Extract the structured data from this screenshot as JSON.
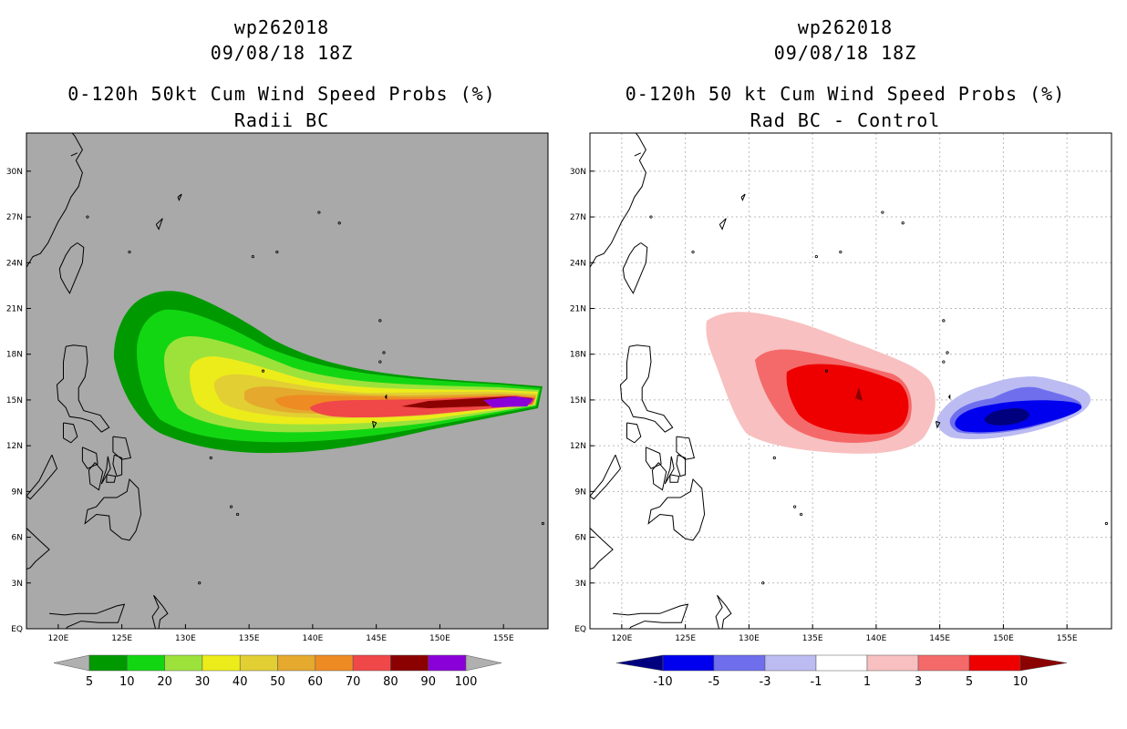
{
  "left": {
    "storm_id": "wp262018",
    "datetime": "09/08/18 18Z",
    "title": "0-120h 50kt Cum Wind Speed Probs (%)",
    "subtitle": "Radii BC",
    "background_color": "#a9a9a9",
    "colorbar": {
      "levels": [
        "5",
        "10",
        "20",
        "30",
        "40",
        "50",
        "60",
        "70",
        "80",
        "90",
        "100"
      ],
      "colors": [
        "#b0b0b0",
        "#009a00",
        "#13d613",
        "#9de23b",
        "#ecec1a",
        "#e2cf33",
        "#e4a92d",
        "#ee8b22",
        "#f04748",
        "#8b0000",
        "#8a00d8",
        "#b0b0b0"
      ]
    }
  },
  "right": {
    "storm_id": "wp262018",
    "datetime": "09/08/18 18Z",
    "title": "0-120h 50 kt Cum Wind Speed Probs (%)",
    "subtitle": "Rad BC - Control",
    "background_color": "#ffffff",
    "colorbar": {
      "levels": [
        "-10",
        "-5",
        "-3",
        "-1",
        "1",
        "3",
        "5",
        "10"
      ],
      "colors": [
        "#00007f",
        "#0000ee",
        "#6f6fee",
        "#bcbcf2",
        "#ffffff",
        "#f8c0c0",
        "#f46a6a",
        "#ee0000",
        "#8b0000"
      ]
    }
  },
  "map": {
    "lat_labels": [
      "EQ",
      "3N",
      "6N",
      "9N",
      "12N",
      "15N",
      "18N",
      "21N",
      "24N",
      "27N",
      "30N"
    ],
    "lon_labels": [
      "120E",
      "125E",
      "130E",
      "135E",
      "140E",
      "145E",
      "150E",
      "155E"
    ],
    "lat_values": [
      0,
      3,
      6,
      9,
      12,
      15,
      18,
      21,
      24,
      27,
      30
    ],
    "lon_values": [
      120,
      125,
      130,
      135,
      140,
      145,
      150,
      155
    ],
    "lon_range": [
      117.5,
      158.5
    ],
    "lat_range": [
      0,
      32.5
    ]
  }
}
